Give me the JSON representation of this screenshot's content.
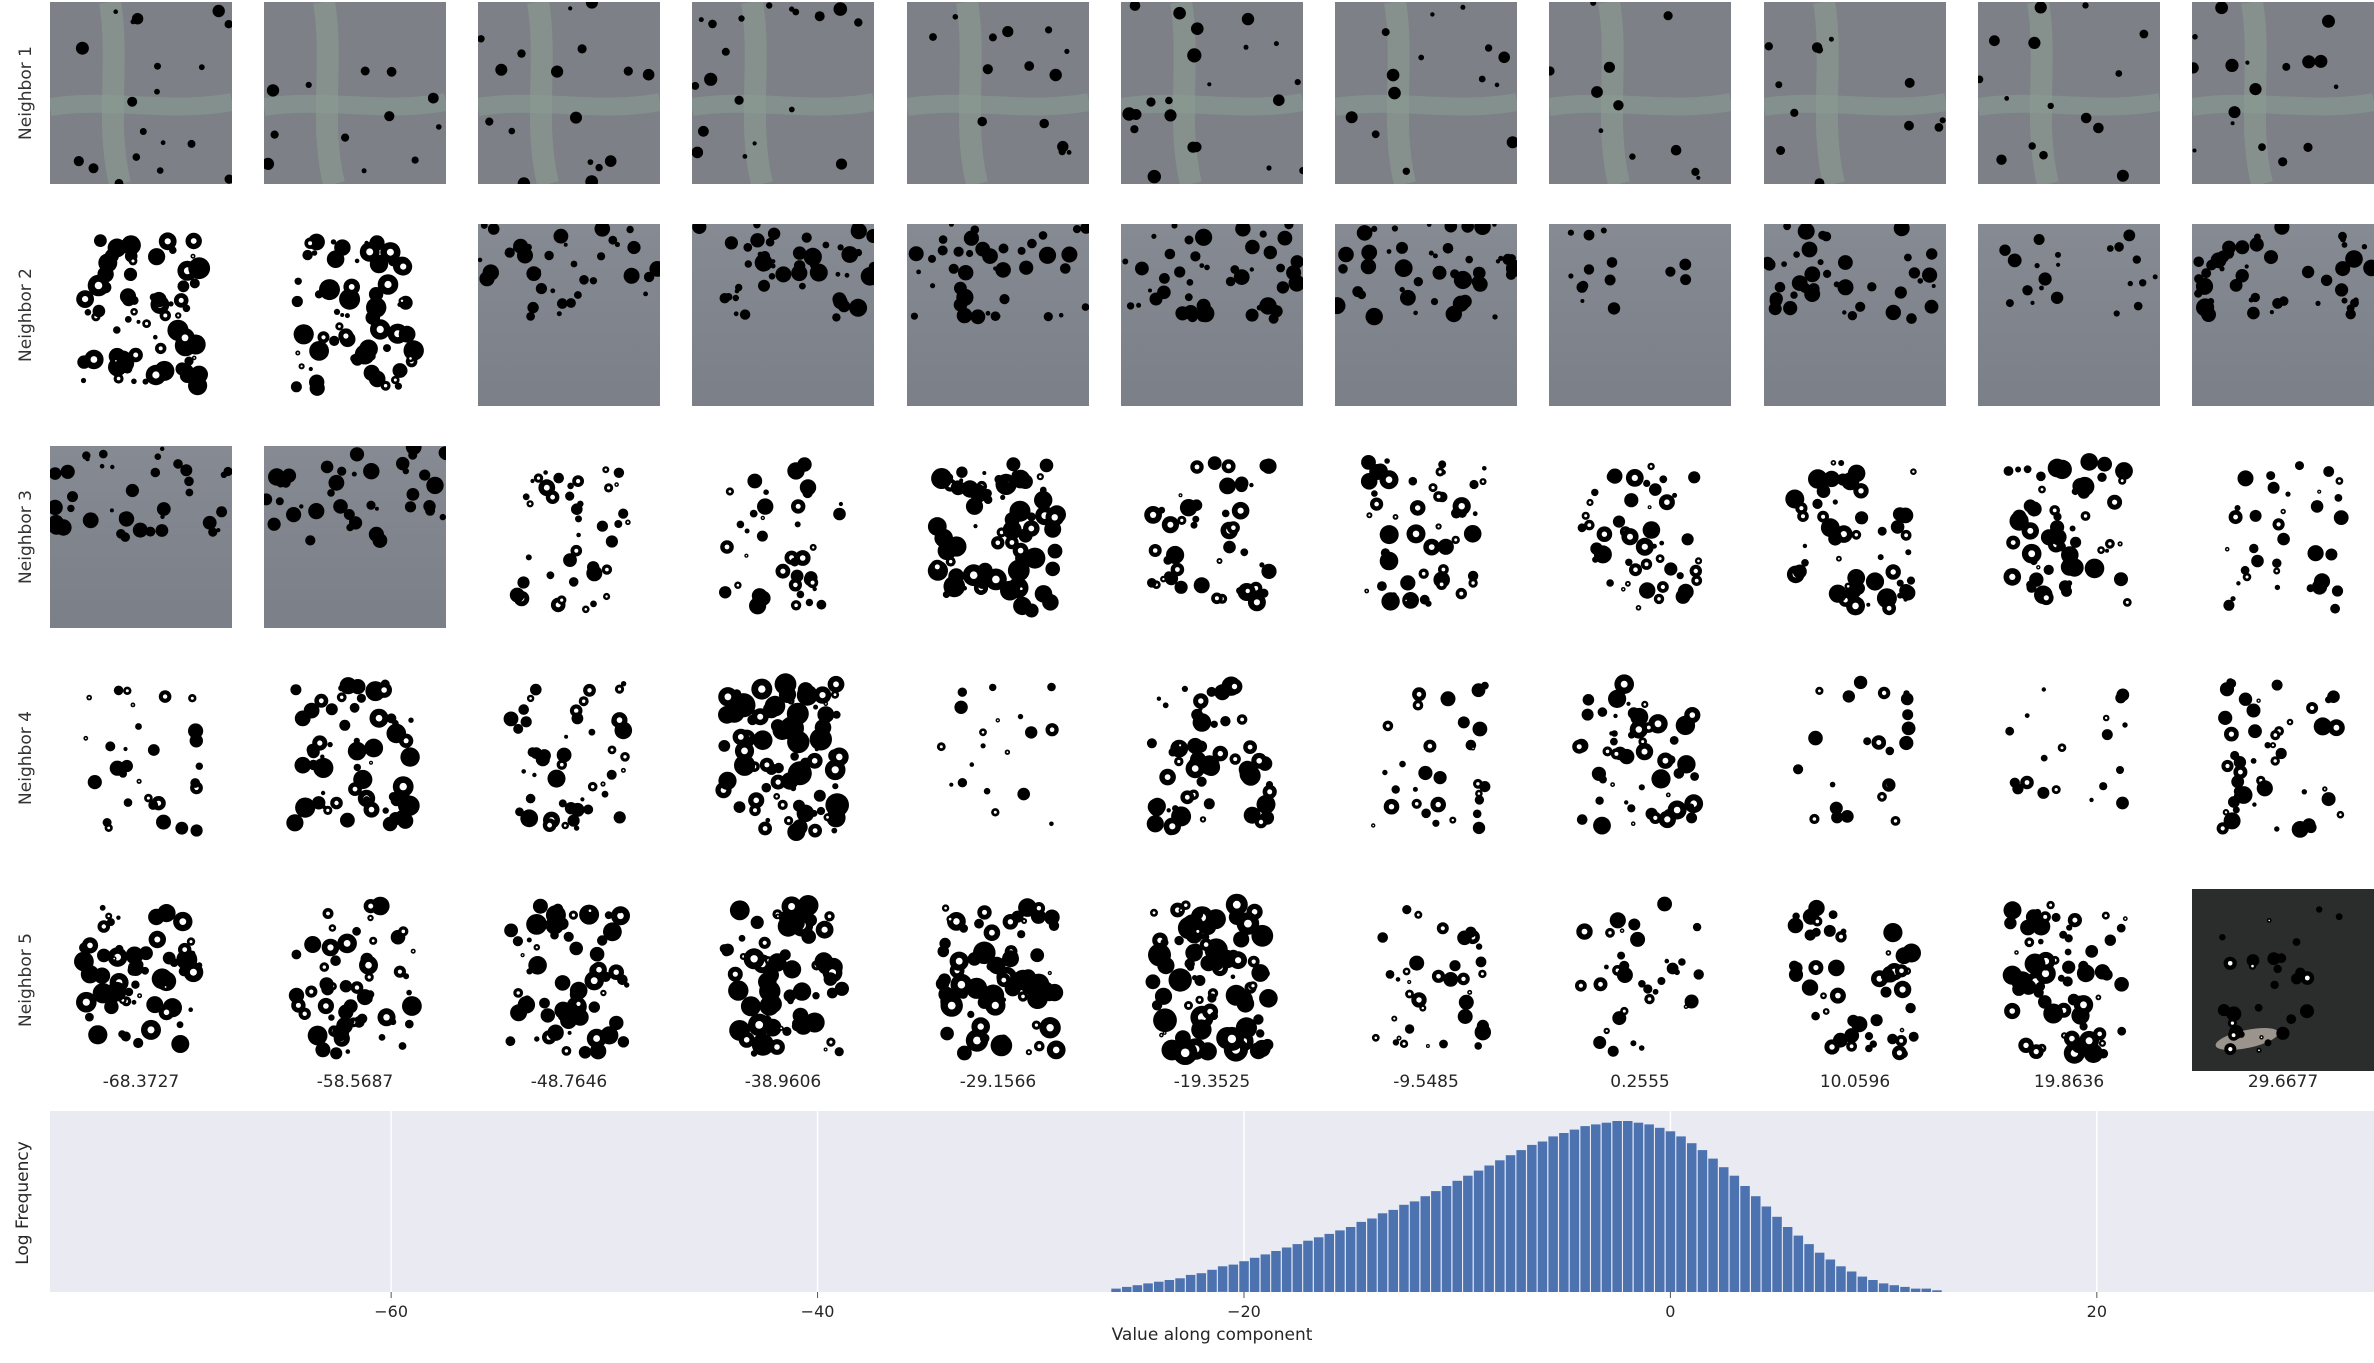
{
  "figure": {
    "row_labels": [
      "Neighbor 1",
      "Neighbor 2",
      "Neighbor 3",
      "Neighbor 4",
      "Neighbor 5"
    ],
    "column_values": [
      "-68.3727",
      "-58.5687",
      "-48.7646",
      "-38.9606",
      "-29.1566",
      "-19.3525",
      "-9.5485",
      "0.2555",
      "10.0596",
      "19.8636",
      "29.6677"
    ],
    "tile_backgrounds": [
      [
        "gray",
        "gray",
        "gray",
        "gray",
        "gray",
        "gray",
        "gray",
        "gray",
        "gray",
        "gray",
        "gray"
      ],
      [
        "white",
        "white",
        "gray2",
        "gray2",
        "gray2",
        "gray2",
        "gray2",
        "gray2",
        "gray2",
        "gray2",
        "gray2"
      ],
      [
        "gray2",
        "gray2",
        "white",
        "white",
        "white",
        "white",
        "white",
        "white",
        "white",
        "white",
        "white"
      ],
      [
        "white",
        "white",
        "white",
        "white",
        "white",
        "white",
        "white",
        "white",
        "white",
        "white",
        "white"
      ],
      [
        "white",
        "white",
        "white",
        "white",
        "white",
        "white",
        "white",
        "white",
        "white",
        "white",
        "dark"
      ]
    ],
    "tile_density": [
      [
        0.1,
        0.04,
        0.08,
        0.1,
        0.05,
        0.12,
        0.05,
        0.03,
        0.04,
        0.06,
        0.08
      ],
      [
        0.55,
        0.55,
        0.25,
        0.4,
        0.3,
        0.35,
        0.35,
        0.05,
        0.3,
        0.12,
        0.35
      ],
      [
        0.28,
        0.3,
        0.3,
        0.3,
        0.55,
        0.35,
        0.4,
        0.35,
        0.45,
        0.45,
        0.25
      ],
      [
        0.2,
        0.5,
        0.35,
        0.7,
        0.1,
        0.45,
        0.2,
        0.45,
        0.15,
        0.1,
        0.35
      ],
      [
        0.5,
        0.45,
        0.5,
        0.6,
        0.6,
        0.7,
        0.25,
        0.25,
        0.4,
        0.55,
        0.2
      ]
    ],
    "colors": {
      "gray_tile": "#7d8086",
      "mark": "#000000",
      "hist_bar": "#4c72b0",
      "hist_bg": "#eaeaf2",
      "grid": "#ffffff"
    }
  },
  "chart_data": {
    "type": "bar",
    "title": "",
    "xlabel": "Value along component",
    "ylabel": "Log Frequency",
    "xlim": [
      -76,
      33
    ],
    "x_ticks": [
      -60,
      -40,
      -20,
      0,
      20
    ],
    "x_tick_labels": [
      "−60",
      "−40",
      "−20",
      "0",
      "20"
    ],
    "grid": true,
    "bin_width": 0.5,
    "bins": [
      {
        "x": -26.0,
        "y": 0.02
      },
      {
        "x": -25.5,
        "y": 0.03
      },
      {
        "x": -25.0,
        "y": 0.04
      },
      {
        "x": -24.5,
        "y": 0.05
      },
      {
        "x": -24.0,
        "y": 0.06
      },
      {
        "x": -23.5,
        "y": 0.07
      },
      {
        "x": -23.0,
        "y": 0.08
      },
      {
        "x": -22.5,
        "y": 0.1
      },
      {
        "x": -22.0,
        "y": 0.11
      },
      {
        "x": -21.5,
        "y": 0.13
      },
      {
        "x": -21.0,
        "y": 0.15
      },
      {
        "x": -20.5,
        "y": 0.16
      },
      {
        "x": -20.0,
        "y": 0.18
      },
      {
        "x": -19.5,
        "y": 0.2
      },
      {
        "x": -19.0,
        "y": 0.22
      },
      {
        "x": -18.5,
        "y": 0.24
      },
      {
        "x": -18.0,
        "y": 0.26
      },
      {
        "x": -17.5,
        "y": 0.28
      },
      {
        "x": -17.0,
        "y": 0.3
      },
      {
        "x": -16.5,
        "y": 0.32
      },
      {
        "x": -16.0,
        "y": 0.34
      },
      {
        "x": -15.5,
        "y": 0.36
      },
      {
        "x": -15.0,
        "y": 0.38
      },
      {
        "x": -14.5,
        "y": 0.41
      },
      {
        "x": -14.0,
        "y": 0.43
      },
      {
        "x": -13.5,
        "y": 0.46
      },
      {
        "x": -13.0,
        "y": 0.48
      },
      {
        "x": -12.5,
        "y": 0.51
      },
      {
        "x": -12.0,
        "y": 0.53
      },
      {
        "x": -11.5,
        "y": 0.56
      },
      {
        "x": -11.0,
        "y": 0.59
      },
      {
        "x": -10.5,
        "y": 0.62
      },
      {
        "x": -10.0,
        "y": 0.65
      },
      {
        "x": -9.5,
        "y": 0.68
      },
      {
        "x": -9.0,
        "y": 0.71
      },
      {
        "x": -8.5,
        "y": 0.74
      },
      {
        "x": -8.0,
        "y": 0.77
      },
      {
        "x": -7.5,
        "y": 0.8
      },
      {
        "x": -7.0,
        "y": 0.83
      },
      {
        "x": -6.5,
        "y": 0.86
      },
      {
        "x": -6.0,
        "y": 0.88
      },
      {
        "x": -5.5,
        "y": 0.91
      },
      {
        "x": -5.0,
        "y": 0.93
      },
      {
        "x": -4.5,
        "y": 0.95
      },
      {
        "x": -4.0,
        "y": 0.97
      },
      {
        "x": -3.5,
        "y": 0.98
      },
      {
        "x": -3.0,
        "y": 0.99
      },
      {
        "x": -2.5,
        "y": 1.0
      },
      {
        "x": -2.0,
        "y": 1.0
      },
      {
        "x": -1.5,
        "y": 0.99
      },
      {
        "x": -1.0,
        "y": 0.98
      },
      {
        "x": -0.5,
        "y": 0.96
      },
      {
        "x": 0.0,
        "y": 0.94
      },
      {
        "x": 0.5,
        "y": 0.91
      },
      {
        "x": 1.0,
        "y": 0.87
      },
      {
        "x": 1.5,
        "y": 0.83
      },
      {
        "x": 2.0,
        "y": 0.78
      },
      {
        "x": 2.5,
        "y": 0.73
      },
      {
        "x": 3.0,
        "y": 0.68
      },
      {
        "x": 3.5,
        "y": 0.62
      },
      {
        "x": 4.0,
        "y": 0.56
      },
      {
        "x": 4.5,
        "y": 0.5
      },
      {
        "x": 5.0,
        "y": 0.44
      },
      {
        "x": 5.5,
        "y": 0.38
      },
      {
        "x": 6.0,
        "y": 0.33
      },
      {
        "x": 6.5,
        "y": 0.28
      },
      {
        "x": 7.0,
        "y": 0.23
      },
      {
        "x": 7.5,
        "y": 0.19
      },
      {
        "x": 8.0,
        "y": 0.15
      },
      {
        "x": 8.5,
        "y": 0.12
      },
      {
        "x": 9.0,
        "y": 0.09
      },
      {
        "x": 9.5,
        "y": 0.07
      },
      {
        "x": 10.0,
        "y": 0.05
      },
      {
        "x": 10.5,
        "y": 0.04
      },
      {
        "x": 11.0,
        "y": 0.03
      },
      {
        "x": 11.5,
        "y": 0.02
      },
      {
        "x": 12.0,
        "y": 0.02
      },
      {
        "x": 12.5,
        "y": 0.01
      }
    ]
  }
}
